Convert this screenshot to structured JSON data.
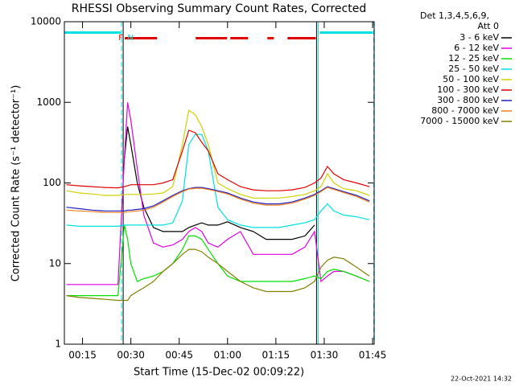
{
  "chart_data": {
    "type": "line",
    "title": "RHESSI Observing Summary Count Rates, Corrected",
    "xlabel": "Start Time (15-Dec-02 00:09:22)",
    "ylabel": "Corrected Count Rate (s⁻¹ detector⁻¹)",
    "legend_header": [
      "Det 1,3,4,5,6,9,",
      "Att 0"
    ],
    "timestamp": "22-Oct-2021 14:32",
    "log_y": true,
    "xlim": [
      "00:09:22",
      "01:45:30"
    ],
    "xticks": [
      "00:15",
      "00:30",
      "00:45",
      "01:00",
      "01:15",
      "01:30",
      "01:45"
    ],
    "ylim": [
      1,
      10000
    ],
    "yticks": [
      1,
      10,
      100,
      1000,
      10000
    ],
    "x": [
      "00:10",
      "00:14",
      "00:18",
      "00:22",
      "00:26",
      "00:28",
      "00:29",
      "00:30",
      "00:32",
      "00:34",
      "00:37",
      "00:40",
      "00:43",
      "00:46",
      "00:48",
      "00:50",
      "00:52",
      "00:54",
      "00:57",
      "01:00",
      "01:04",
      "01:08",
      "01:12",
      "01:16",
      "01:20",
      "01:24",
      "01:27",
      "01:29",
      "01:31",
      "01:33",
      "01:36",
      "01:40",
      "01:44"
    ],
    "series": [
      {
        "name": "3 - 6 keV",
        "color": "#000000",
        "values": [
          null,
          null,
          null,
          null,
          null,
          200,
          500,
          300,
          100,
          50,
          28,
          25,
          25,
          25,
          28,
          30,
          32,
          30,
          30,
          33,
          28,
          25,
          20,
          20,
          20,
          22,
          30,
          null,
          null,
          null,
          null,
          null,
          null
        ]
      },
      {
        "name": "6 - 12 keV",
        "color": "#e000e0",
        "values": [
          5.5,
          5.5,
          5.5,
          5.5,
          5.5,
          200,
          1000,
          600,
          150,
          40,
          18,
          16,
          17,
          20,
          25,
          28,
          25,
          18,
          16,
          20,
          25,
          13,
          13,
          13,
          13,
          16,
          25,
          6,
          7,
          8,
          8,
          7,
          6
        ]
      },
      {
        "name": "12 - 25 keV",
        "color": "#00e000",
        "values": [
          4,
          4,
          4,
          4,
          4,
          30,
          20,
          10,
          6,
          6.5,
          7,
          8,
          10,
          15,
          22,
          22,
          20,
          15,
          10,
          7,
          6,
          6,
          6,
          6,
          6,
          6.5,
          7,
          6.5,
          8,
          8.5,
          8,
          7,
          6
        ]
      },
      {
        "name": "25 - 50 keV",
        "color": "#00e0e0",
        "values": [
          30,
          29,
          29,
          29,
          29,
          30,
          30,
          30,
          30,
          30,
          30,
          30,
          32,
          60,
          300,
          400,
          400,
          250,
          50,
          35,
          30,
          28,
          28,
          28,
          30,
          32,
          35,
          45,
          55,
          45,
          40,
          38,
          35
        ]
      },
      {
        "name": "50 - 100 keV",
        "color": "#d0d000",
        "values": [
          80,
          75,
          73,
          70,
          70,
          72,
          72,
          72,
          72,
          72,
          73,
          75,
          90,
          300,
          800,
          700,
          500,
          300,
          100,
          85,
          72,
          65,
          65,
          65,
          68,
          72,
          80,
          90,
          130,
          100,
          85,
          80,
          70
        ]
      },
      {
        "name": "100 - 300 keV",
        "color": "#e00000",
        "values": [
          95,
          92,
          90,
          88,
          87,
          90,
          92,
          95,
          95,
          95,
          95,
          100,
          110,
          250,
          450,
          420,
          320,
          250,
          130,
          110,
          90,
          82,
          80,
          80,
          82,
          88,
          100,
          115,
          160,
          130,
          110,
          100,
          90
        ]
      },
      {
        "name": "300 - 800 keV",
        "color": "#2020c0",
        "values": [
          50,
          48,
          46,
          45,
          45,
          45,
          46,
          46,
          47,
          48,
          52,
          60,
          70,
          80,
          85,
          88,
          88,
          85,
          80,
          75,
          65,
          58,
          55,
          55,
          58,
          65,
          72,
          80,
          90,
          85,
          78,
          70,
          60
        ]
      },
      {
        "name": "800 - 7000 keV",
        "color": "#f08020",
        "values": [
          46,
          45,
          44,
          43,
          43,
          43,
          44,
          44,
          45,
          46,
          50,
          58,
          68,
          78,
          84,
          86,
          86,
          83,
          78,
          73,
          63,
          56,
          53,
          53,
          56,
          63,
          70,
          78,
          88,
          83,
          76,
          68,
          58
        ]
      },
      {
        "name": "7000 - 15000 keV",
        "color": "#808000",
        "values": [
          4,
          3.8,
          3.7,
          3.6,
          3.5,
          3.5,
          3.5,
          4,
          4.5,
          5,
          6,
          8,
          10,
          13,
          15,
          15,
          14,
          12,
          10,
          8,
          6,
          5,
          4.5,
          4.5,
          4.5,
          5,
          6,
          9,
          11,
          12,
          11.5,
          9,
          7
        ]
      }
    ],
    "flag_labels": [
      {
        "text": "F",
        "color": "#e00000",
        "x": "00:26:52"
      },
      {
        "text": "N",
        "color": "#00e0e0",
        "x": "00:29:52"
      }
    ],
    "flag_bars": [
      {
        "color": "#e00000",
        "ranges": [
          [
            "00:28:07",
            "00:38:07"
          ],
          [
            "00:50:07",
            "00:59:52"
          ],
          [
            "01:00:52",
            "01:06:22"
          ],
          [
            "01:12:22",
            "01:14:22"
          ],
          [
            "01:18:37",
            "01:27:22"
          ]
        ]
      },
      {
        "color": "#00e0e0",
        "ranges": [
          [
            "00:09:22",
            "00:26:52"
          ],
          [
            "01:28:37",
            "01:45:07"
          ]
        ]
      }
    ],
    "vlines": [
      {
        "x": "00:27:07",
        "color": "#00e0e0",
        "dashed": true
      },
      {
        "x": "00:27:37",
        "color": "#000000",
        "dashed": false
      },
      {
        "x": "01:27:37",
        "color": "#000000",
        "dashed": false
      },
      {
        "x": "01:28:07",
        "color": "#00e0e0",
        "dashed": false
      },
      {
        "x": "01:45:22",
        "color": "#00e0e0",
        "dashed": true
      }
    ]
  }
}
